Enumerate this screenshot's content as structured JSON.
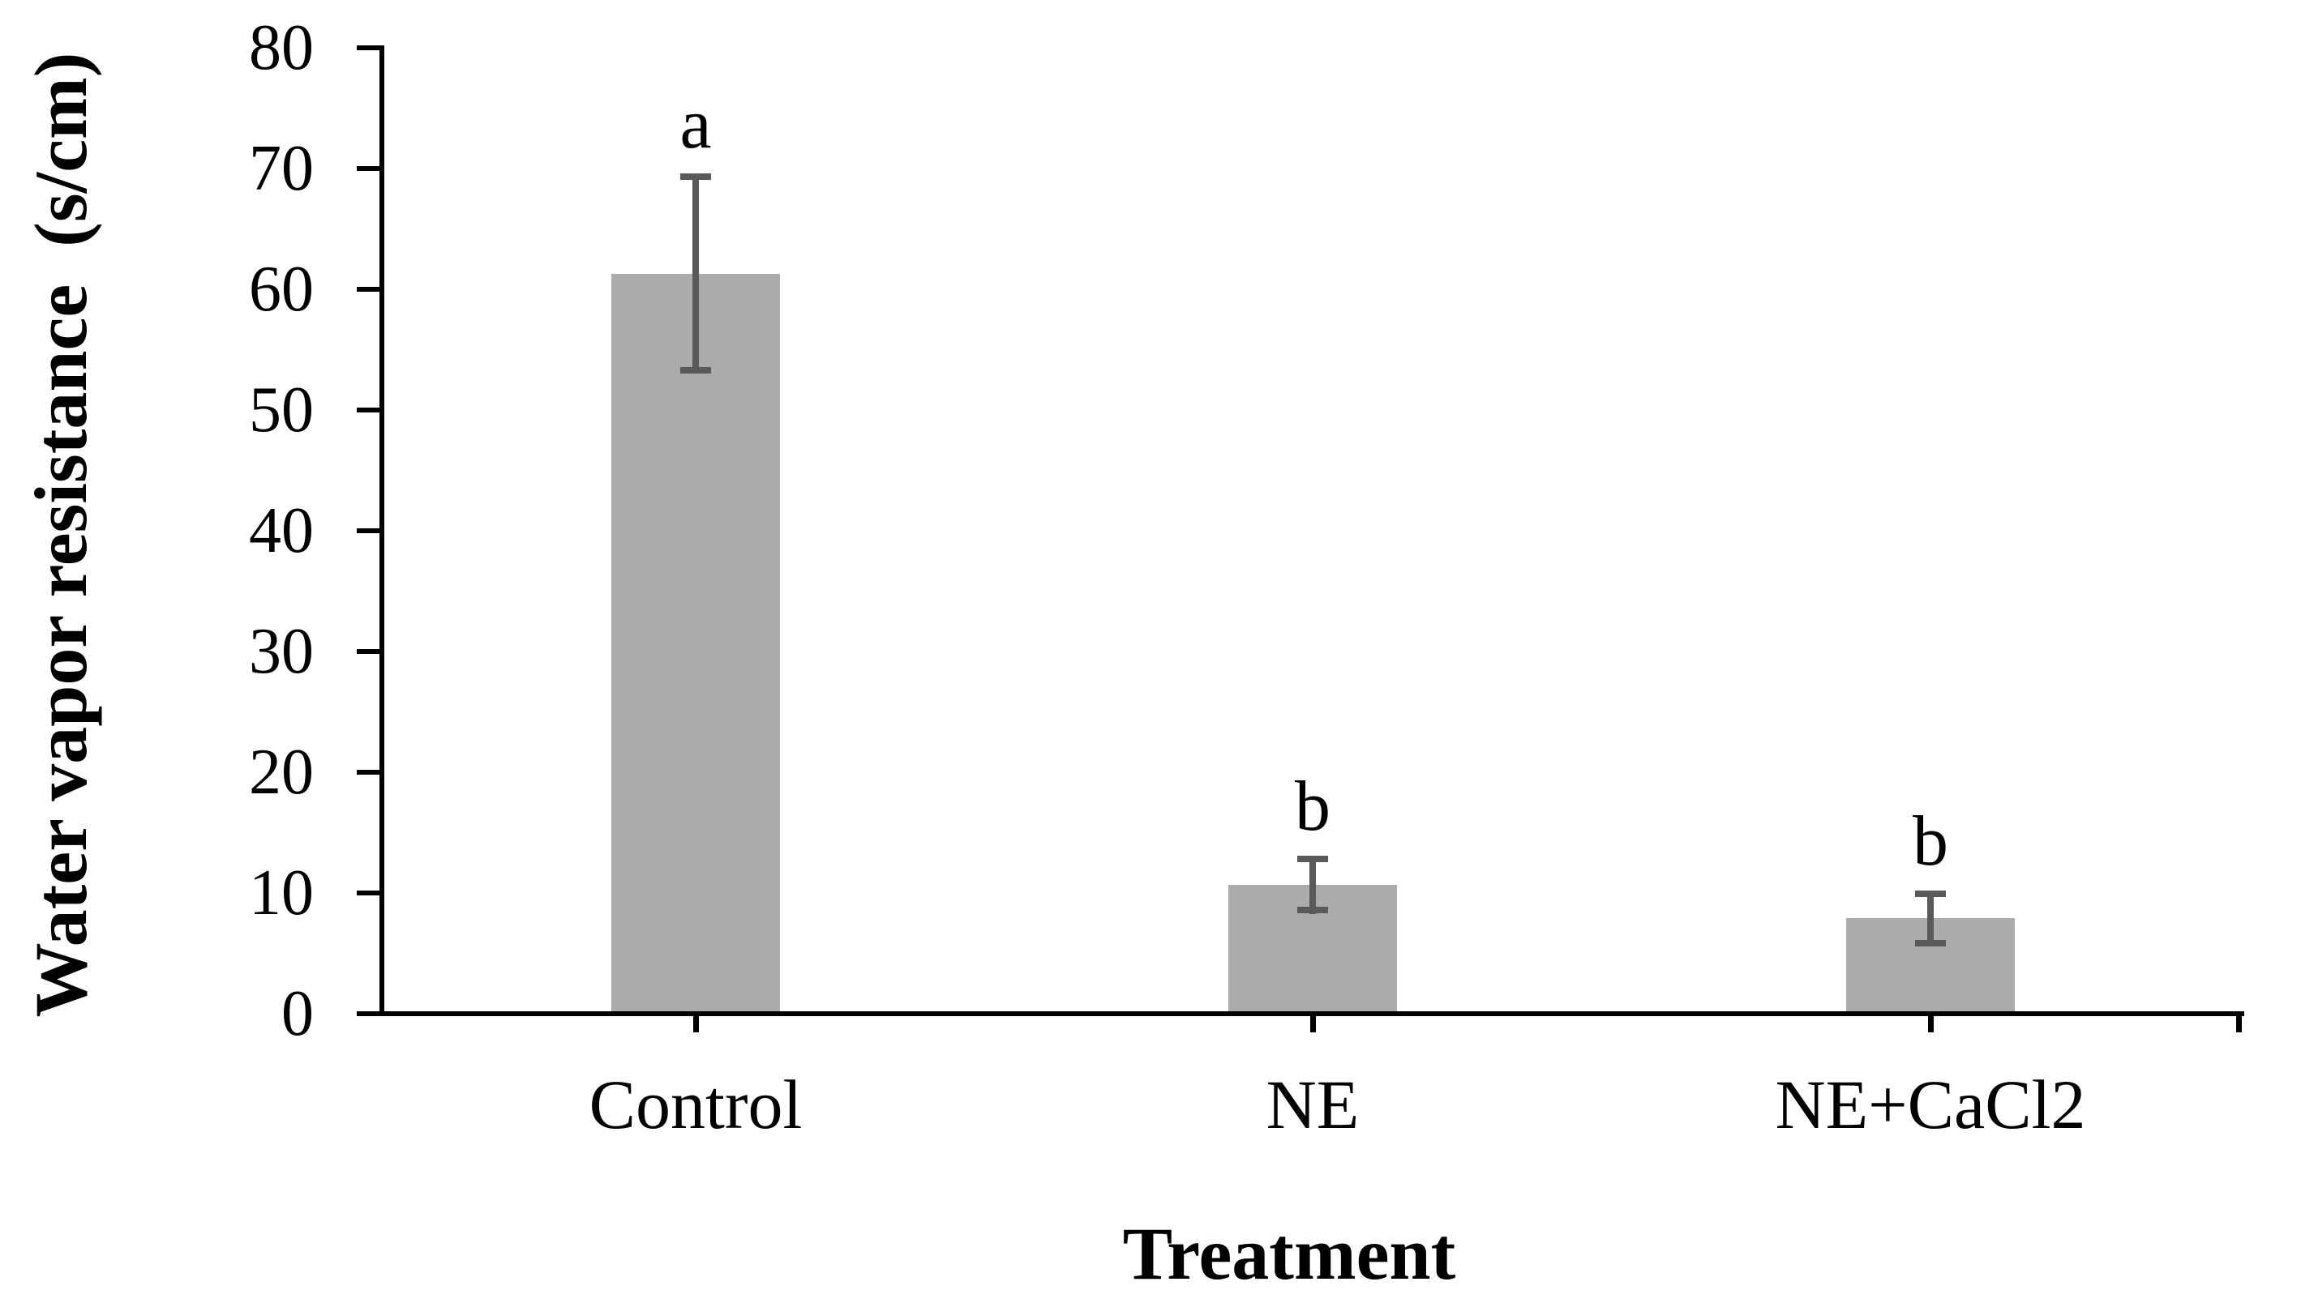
{
  "chart_data": {
    "type": "bar",
    "title": "",
    "categories": [
      "Control",
      "NE",
      "NE+CaCl2"
    ],
    "values": [
      61.3,
      10.7,
      7.9
    ],
    "error_bars_plus_minus": [
      8.3,
      2.4,
      2.3
    ],
    "significance_letters": [
      "a",
      "b",
      "b"
    ],
    "xlabel": "Treatment",
    "ylabel": "Water vapor resistance  (s/cm)",
    "ylim": [
      0,
      80
    ],
    "ytick_step": 10,
    "yticks": [
      0,
      10,
      20,
      30,
      40,
      50,
      60,
      70,
      80
    ],
    "grid": false,
    "legend": false,
    "colors": {
      "bar_fill": "#ABABAB",
      "error_bar": "#595959",
      "axis": "#000000",
      "text": "#000000",
      "background": "#FFFFFF"
    }
  }
}
